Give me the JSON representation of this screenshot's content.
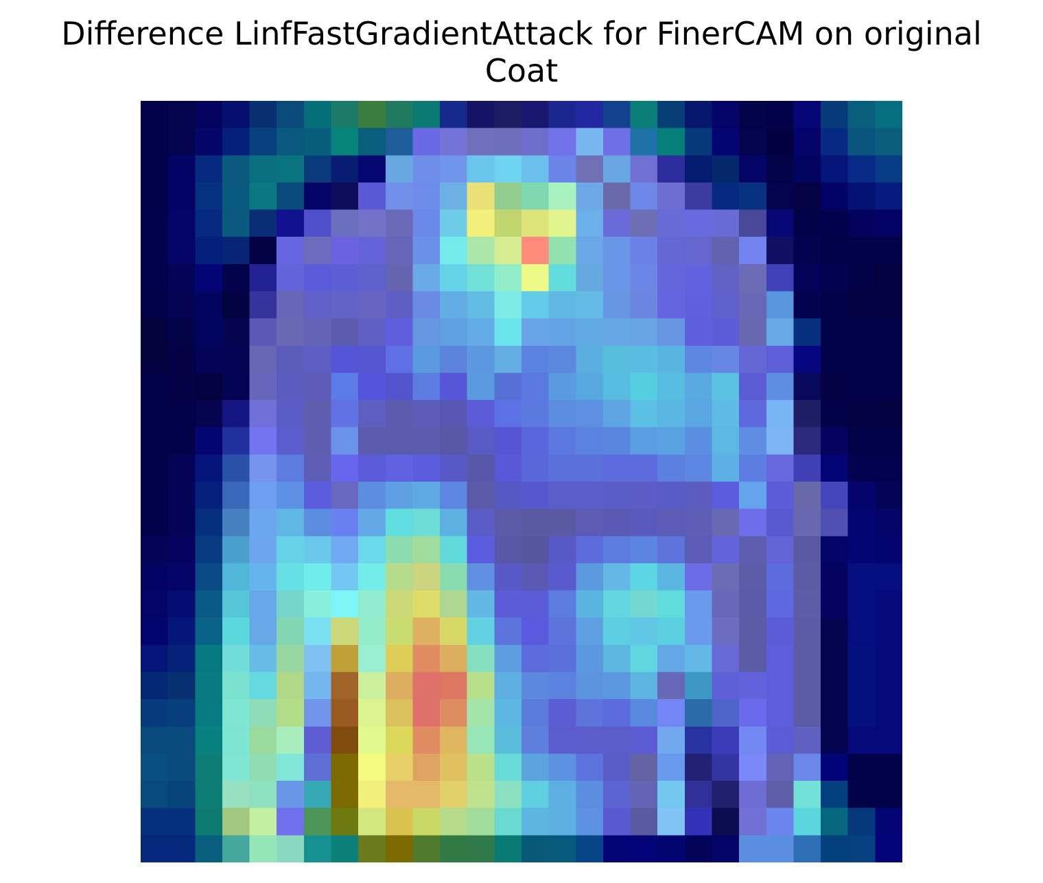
{
  "chart_data": {
    "type": "heatmap",
    "title": "Difference LinfFastGradientAttack for FinerCAM on original\nCoat",
    "rows": 28,
    "cols": 28,
    "axes_visible": false,
    "legend": "none",
    "cells": [
      [
        "#02024a",
        "#03034e",
        "#040460",
        "#05106e",
        "#083071",
        "#0a4a7a",
        "#066e78",
        "#1c7a68",
        "#3b7c3f",
        "#1f7a5e",
        "#0b7a72",
        "#152a8a",
        "#141466",
        "#1c1c62",
        "#181870",
        "#1c268f",
        "#22289f",
        "#12428e",
        "#0b7d78",
        "#083e78",
        "#06186e",
        "#040468",
        "#03034a",
        "#02024a",
        "#050578",
        "#073a78",
        "#085e7c",
        "#076e80"
      ],
      [
        "#02024a",
        "#03034e",
        "#04046a",
        "#05207a",
        "#08407e",
        "#0a5a80",
        "#065e7c",
        "#06847a",
        "#085e7c",
        "#1e5c9a",
        "#6b68e6",
        "#7474d8",
        "#6f6fbe",
        "#6e6ebc",
        "#6e6ecc",
        "#7272ea",
        "#78b6f0",
        "#7070e6",
        "#1e72a8",
        "#067e7a",
        "#043a7a",
        "#040472",
        "#03034e",
        "#010140",
        "#03036a",
        "#062a84",
        "#08547c",
        "#0a5e7c"
      ],
      [
        "#02024a",
        "#030366",
        "#052a80",
        "#0a5a80",
        "#0a7080",
        "#0a7480",
        "#083a7c",
        "#081c74",
        "#070772",
        "#68a8e0",
        "#6f8eea",
        "#7096ea",
        "#6cc6ec",
        "#6ed4f0",
        "#6ac0ea",
        "#6a84e8",
        "#7070b4",
        "#6aa6e4",
        "#7070d2",
        "#2c2c9c",
        "#041c70",
        "#04286a",
        "#040466",
        "#03034a",
        "#030360",
        "#041478",
        "#062a86",
        "#083c86"
      ],
      [
        "#02024a",
        "#030366",
        "#053280",
        "#0a5a80",
        "#0a7880",
        "#084a7a",
        "#040466",
        "#0c0c5a",
        "#5a58d4",
        "#7090ea",
        "#6e8cea",
        "#6cb0e6",
        "#eae078",
        "#92cc8e",
        "#80d8b0",
        "#a8f2c0",
        "#6ea8e8",
        "#6a6aaa",
        "#6e88ea",
        "#6e6ed0",
        "#3c3ca0",
        "#062a80",
        "#063080",
        "#030350",
        "#030346",
        "#030366",
        "#041276",
        "#061a80"
      ],
      [
        "#02024c",
        "#030368",
        "#052a80",
        "#0a5a80",
        "#082c76",
        "#121290",
        "#5050cc",
        "#6c6ebe",
        "#7272c8",
        "#6a6ab8",
        "#6c88e8",
        "#6ecce8",
        "#f2f07a",
        "#c2d670",
        "#dce47a",
        "#e2f48e",
        "#6cb0ea",
        "#6a6ad8",
        "#6e6eb4",
        "#6a6ad6",
        "#6a6ae0",
        "#6a6ad6",
        "#484898",
        "#070778",
        "#020248",
        "#02024c",
        "#03035e",
        "#030366"
      ],
      [
        "#02024c",
        "#030368",
        "#05207a",
        "#062474",
        "#020244",
        "#6666e0",
        "#6c6cbc",
        "#6a62de",
        "#6464d8",
        "#6666b8",
        "#6a90ea",
        "#74ecec",
        "#ace6a8",
        "#d6ec90",
        "#ff8c7a",
        "#92e2b0",
        "#6aa6e8",
        "#6a96e8",
        "#6c80ea",
        "#6666d6",
        "#6666ce",
        "#6262b0",
        "#7282ee",
        "#101060",
        "#020250",
        "#020248",
        "#020248",
        "#020248"
      ],
      [
        "#02024c",
        "#030358",
        "#040476",
        "#03034c",
        "#222294",
        "#6464d8",
        "#5c5cda",
        "#5e5ed4",
        "#6060cc",
        "#6464b0",
        "#6aaae8",
        "#66d4e8",
        "#72e2d8",
        "#92eec8",
        "#eefa88",
        "#62dcdc",
        "#66a8e0",
        "#6a96e8",
        "#6a86e6",
        "#6666dc",
        "#6262de",
        "#6262c6",
        "#6c6cb6",
        "#4040b8",
        "#020258",
        "#020250",
        "#020246",
        "#020240"
      ],
      [
        "#02024a",
        "#030352",
        "#030360",
        "#020240",
        "#34349c",
        "#6666b6",
        "#6060c8",
        "#6262c8",
        "#6666c2",
        "#5e5ec4",
        "#6a8ae4",
        "#62aee4",
        "#62bce4",
        "#7eeae6",
        "#64cce8",
        "#62b8e4",
        "#64bce6",
        "#6696e2",
        "#6a86e0",
        "#6464de",
        "#6060de",
        "#6060cc",
        "#6868b6",
        "#5a96de",
        "#020250",
        "#020248",
        "#020242",
        "#020240"
      ],
      [
        "#02023e",
        "#030348",
        "#030360",
        "#030350",
        "#5a5ab6",
        "#6868b4",
        "#6464b4",
        "#5c5cae",
        "#6060c4",
        "#5e5ede",
        "#6496e2",
        "#62a0e4",
        "#64aae6",
        "#6ae4ec",
        "#6aa4e8",
        "#64a4e6",
        "#62aae4",
        "#66a8e6",
        "#66a4e4",
        "#6696e0",
        "#5e5ede",
        "#5c5cd8",
        "#6868b0",
        "#66a8e8",
        "#06307e",
        "#020248",
        "#02024a",
        "#02024a"
      ],
      [
        "#02023e",
        "#020244",
        "#030358",
        "#030354",
        "#6666b4",
        "#5c5cba",
        "#5e5ec4",
        "#5454d6",
        "#5656d0",
        "#5e70e4",
        "#5c9ae0",
        "#5c84dc",
        "#5c98e2",
        "#64aee4",
        "#5c82e0",
        "#5c88e0",
        "#5aaee0",
        "#58bedc",
        "#5abce0",
        "#5ab4e2",
        "#5c86e0",
        "#6688e4",
        "#6666d6",
        "#5e5ed8",
        "#060680",
        "#020248",
        "#02024a",
        "#02024a"
      ],
      [
        "#02024a",
        "#020244",
        "#020240",
        "#030354",
        "#6666bc",
        "#5c5cbe",
        "#5c5cb8",
        "#5a7ce6",
        "#5454dc",
        "#5454cc",
        "#5c7ce2",
        "#5656d8",
        "#5c9ae0",
        "#5670d8",
        "#5a78e0",
        "#5a9ae0",
        "#58a8e0",
        "#58bce0",
        "#56cee2",
        "#58bce0",
        "#5aaae2",
        "#5cc2e4",
        "#5c5cd4",
        "#5e8ee0",
        "#08085c",
        "#020244",
        "#02024a",
        "#02024a"
      ],
      [
        "#02024a",
        "#020248",
        "#030350",
        "#141482",
        "#7070d8",
        "#5c5cc6",
        "#5e5eae",
        "#6272e4",
        "#5e5ec0",
        "#5c5cae",
        "#5c5cb8",
        "#5858b4",
        "#5c5cd8",
        "#5c72e4",
        "#5a7ae0",
        "#5c8ee0",
        "#5c90e0",
        "#5ea4e2",
        "#5cc0e4",
        "#5ab6e2",
        "#5aa6e2",
        "#5cbce6",
        "#5c68dc",
        "#78b4f6",
        "#1e1e64",
        "#020248",
        "#020242",
        "#020240"
      ],
      [
        "#02024a",
        "#020248",
        "#040472",
        "#20309c",
        "#7474f0",
        "#5c5cce",
        "#5e5eb0",
        "#6a92e8",
        "#5c5cae",
        "#5c5cae",
        "#5c5cac",
        "#5858a6",
        "#5a5ac4",
        "#5656d4",
        "#5868dc",
        "#5c78e0",
        "#5c82e0",
        "#5a86e0",
        "#5c9ee2",
        "#5aa2e2",
        "#5a8ee2",
        "#5cb8e4",
        "#5e8ee4",
        "#7cb4f6",
        "#2a2a7c",
        "#040460",
        "#020248",
        "#020248"
      ],
      [
        "#02024a",
        "#030356",
        "#05147a",
        "#2a50a8",
        "#7694ee",
        "#5c7ce0",
        "#5e5eb6",
        "#6666ee",
        "#5c5cda",
        "#5e62e0",
        "#5c5cde",
        "#5858c8",
        "#5858aa",
        "#5858d8",
        "#5868d8",
        "#5c70dc",
        "#5c70dc",
        "#5c6cdc",
        "#5c6cdc",
        "#5c80e0",
        "#5c86e2",
        "#5cb0e6",
        "#5c7ee2",
        "#6868de",
        "#4040b4",
        "#040476",
        "#020250",
        "#020250"
      ],
      [
        "#02024a",
        "#030358",
        "#06207e",
        "#3a68b8",
        "#6e9ef0",
        "#5c90e4",
        "#5c5cde",
        "#6868c0",
        "#5c8ee0",
        "#5ea0e2",
        "#5eaae2",
        "#5c86e0",
        "#5a5aa8",
        "#5858c4",
        "#5858cc",
        "#5c5cca",
        "#5c5cca",
        "#5c5cc6",
        "#5c5cc4",
        "#5a5ac4",
        "#5c5cbc",
        "#5c5cde",
        "#64a4ec",
        "#5c5cd8",
        "#6868aa",
        "#4646bc",
        "#04046c",
        "#030358"
      ],
      [
        "#02024a",
        "#030358",
        "#06307e",
        "#4680c0",
        "#6ca6ee",
        "#60b6e4",
        "#5c8ee0",
        "#6880f0",
        "#64a8e8",
        "#60dee0",
        "#6edcd6",
        "#5eb2e2",
        "#5c5cc8",
        "#5a5aa6",
        "#5a5aa2",
        "#5a5aa2",
        "#5c5cb4",
        "#5a5ab4",
        "#5a5abe",
        "#5c5cb6",
        "#5e5eb6",
        "#6868b4",
        "#6e6eea",
        "#5a5ad0",
        "#6868b0",
        "#5050b0",
        "#040472",
        "#030368"
      ],
      [
        "#03035a",
        "#040460",
        "#083c82",
        "#4aa0cc",
        "#6ea6ee",
        "#66d2e8",
        "#6ac8ec",
        "#70aaf2",
        "#6adaea",
        "#8cdcb0",
        "#a0dc9c",
        "#62dadc",
        "#5c5ce0",
        "#5858a6",
        "#56569e",
        "#5858c6",
        "#5c6cdc",
        "#5c7ce0",
        "#5c84e0",
        "#5c74dc",
        "#5c5cb6",
        "#6464da",
        "#5e5eb0",
        "#6464d6",
        "#5a5aa4",
        "#040468",
        "#040474",
        "#030370"
      ],
      [
        "#030364",
        "#040466",
        "#0a4a86",
        "#52b6d8",
        "#66b4ee",
        "#66e0e4",
        "#70ecec",
        "#72c8f2",
        "#74ecea",
        "#b4dc8a",
        "#ccd480",
        "#88dcb0",
        "#6090e0",
        "#5858c6",
        "#5a5ab4",
        "#5a5ace",
        "#5c9ae0",
        "#64b8e6",
        "#5cd6e2",
        "#5cb6e2",
        "#6c6ce6",
        "#6c6cb6",
        "#5c5ca8",
        "#5c6cdc",
        "#5c5ca6",
        "#040460",
        "#040e7e",
        "#040e7e"
      ],
      [
        "#030368",
        "#040e72",
        "#0a5a88",
        "#56c6d8",
        "#68a8ea",
        "#76d6cc",
        "#86f0dc",
        "#7ef6f6",
        "#92ecd0",
        "#cad878",
        "#dcdc66",
        "#aed892",
        "#62b8e4",
        "#5c5cd6",
        "#5c5cd8",
        "#5c7ce0",
        "#5ab4e0",
        "#62d6e0",
        "#74d8d0",
        "#60dcdc",
        "#6a9aec",
        "#6868b8",
        "#5a5aa8",
        "#5e68e0",
        "#5c5ca8",
        "#040460",
        "#040e7e",
        "#040a7a"
      ],
      [
        "#04046e",
        "#04167a",
        "#0a6288",
        "#5ad8dc",
        "#66a8e8",
        "#82d6b2",
        "#7ae0f2",
        "#cad878",
        "#96ecc8",
        "#c8dc70",
        "#deb062",
        "#d8d866",
        "#62d2e2",
        "#5c74dc",
        "#5a5ade",
        "#5c74dc",
        "#5ea0e2",
        "#5cd0e2",
        "#60c8e4",
        "#5cd0e0",
        "#6a9aec",
        "#6c6cc0",
        "#5c5ca6",
        "#5c5cd8",
        "#5c5ca6",
        "#030350",
        "#040e7e",
        "#040a7a"
      ],
      [
        "#041478",
        "#052278",
        "#077a80",
        "#72dcd8",
        "#66bce4",
        "#98d8a0",
        "#80c0f2",
        "#c0a038",
        "#9aeed2",
        "#dcce56",
        "#e08c62",
        "#deae60",
        "#84e0c0",
        "#5e9ee0",
        "#5c6cdc",
        "#5c70dc",
        "#5c98e0",
        "#5cb8e0",
        "#60d6e0",
        "#64a8e8",
        "#64b8e8",
        "#6868d6",
        "#5c5ca6",
        "#5e5edc",
        "#5c5ca6",
        "#030350",
        "#04107e",
        "#040a7a"
      ],
      [
        "#052874",
        "#063070",
        "#087a80",
        "#7ce2d0",
        "#64dae0",
        "#b0d888",
        "#74b6ee",
        "#a06428",
        "#caf09c",
        "#deae60",
        "#e0706a",
        "#dc7862",
        "#b8e08a",
        "#5eb0e2",
        "#5c88e0",
        "#5c82e0",
        "#5c94e0",
        "#5c98e0",
        "#5cb4e0",
        "#6868b8",
        "#3c98c2",
        "#5e60d8",
        "#6262dc",
        "#5e5edc",
        "#5c5ca6",
        "#030350",
        "#04107e",
        "#040a7a"
      ],
      [
        "#063a7c",
        "#073e7c",
        "#087a82",
        "#7ee6d2",
        "#8edcb8",
        "#b2dc86",
        "#7294ea",
        "#985a20",
        "#dcf490",
        "#dcc05e",
        "#e0706a",
        "#de8c62",
        "#a4e4a8",
        "#5cb8e2",
        "#5c7cdc",
        "#5c5cd4",
        "#5c74dc",
        "#5c6cdc",
        "#5888e0",
        "#7486f6",
        "#2a6caa",
        "#4e64c6",
        "#6a6aec",
        "#5e5edc",
        "#5c5ca6",
        "#030350",
        "#04107e",
        "#040a7a"
      ],
      [
        "#084a7c",
        "#084a7c",
        "#098080",
        "#7ce6d2",
        "#9ada9c",
        "#a8eebc",
        "#5e5ed2",
        "#804c0e",
        "#e0fa90",
        "#dcd85a",
        "#e08c62",
        "#e0b660",
        "#98e6b8",
        "#5cbcdc",
        "#5c80dc",
        "#5c5cce",
        "#5c5ccc",
        "#5c5cca",
        "#5c5cd4",
        "#72a8ee",
        "#2832a0",
        "#3c3cb8",
        "#7488f4",
        "#5c5cd8",
        "#6060c0",
        "#030350",
        "#040a7a",
        "#040a7a"
      ],
      [
        "#084e80",
        "#084a7c",
        "#0e7e74",
        "#7ee6d2",
        "#92dcb4",
        "#80e6d8",
        "#5e6ed2",
        "#7c6a00",
        "#f4fa80",
        "#e8d068",
        "#e0a462",
        "#e0c060",
        "#bae08a",
        "#6adcd8",
        "#5ca4e0",
        "#5c90e0",
        "#5c72dc",
        "#5c5cc8",
        "#6464a4",
        "#6a9aee",
        "#222274",
        "#3434a4",
        "#7a88f8",
        "#6262b6",
        "#6a88e8",
        "#030378",
        "#02024a",
        "#02024a"
      ],
      [
        "#084a80",
        "#08447c",
        "#0e7e74",
        "#96e0c0",
        "#8ee2c2",
        "#6a96e8",
        "#34a8b4",
        "#7c6a00",
        "#f2f07a",
        "#e4ba6a",
        "#e4ba6a",
        "#e2d06a",
        "#c0e28c",
        "#8ae0c0",
        "#5ed0e2",
        "#5cb0e2",
        "#5c8ee0",
        "#5c64d4",
        "#6464b6",
        "#74c8f0",
        "#303098",
        "#20206e",
        "#6c6cd4",
        "#5e5ea8",
        "#72e2d8",
        "#04407e",
        "#020248",
        "#020248"
      ],
      [
        "#06307e",
        "#06307e",
        "#0e7a70",
        "#a2c880",
        "#c0f0a0",
        "#7070ee",
        "#4c9458",
        "#6e7a10",
        "#d4e680",
        "#d8c250",
        "#cad866",
        "#b4da8a",
        "#a2dc9a",
        "#6adad0",
        "#5cb6e0",
        "#5cb0e2",
        "#5c90e0",
        "#5a5ad0",
        "#5a5aa0",
        "#80c4f6",
        "#3232b8",
        "#0c0c50",
        "#7070d6",
        "#6a86ee",
        "#5ad6dc",
        "#06687e",
        "#06387e",
        "#040474"
      ],
      [
        "#05287c",
        "#05287c",
        "#085e7c",
        "#44a89c",
        "#92e6b8",
        "#8ad8c0",
        "#169090",
        "#0a8078",
        "#6a7a1c",
        "#7c6a00",
        "#507a2c",
        "#307a46",
        "#307a4a",
        "#0a7a74",
        "#085878",
        "#085a7c",
        "#064488",
        "#040476",
        "#040478",
        "#040470",
        "#020258",
        "#040468",
        "#5a8ee0",
        "#5a8ee0",
        "#2e6eb4",
        "#04407e",
        "#06407e",
        "#04047a"
      ]
    ]
  }
}
